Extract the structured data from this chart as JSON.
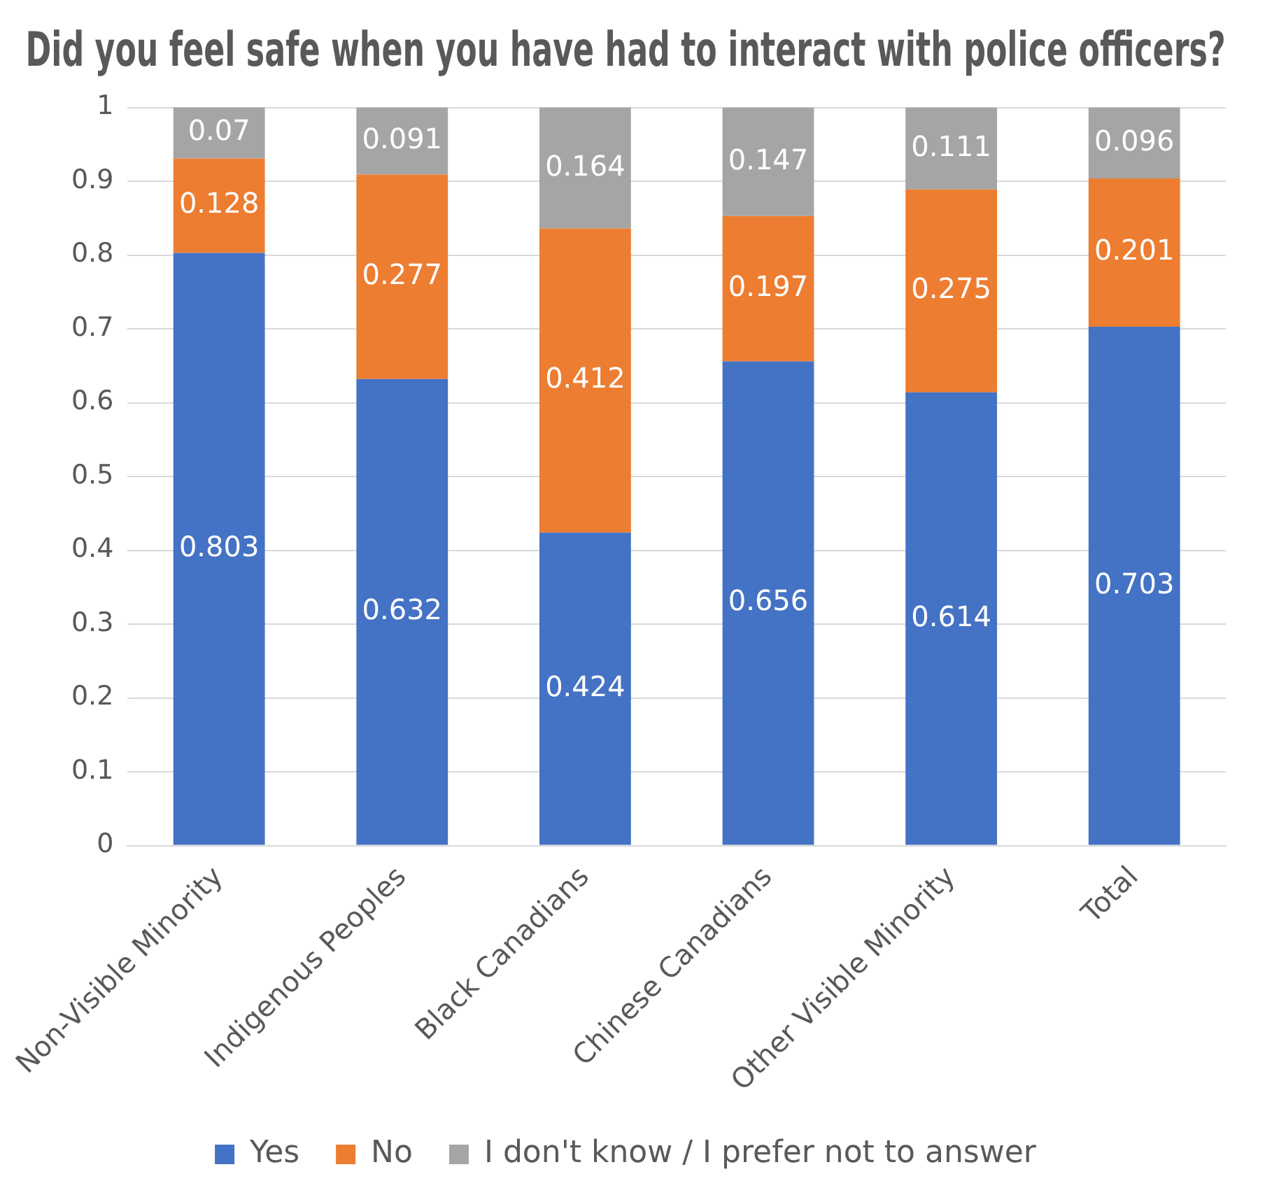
{
  "chart_data": {
    "type": "bar",
    "title": "Did you feel safe when you have had to interact with police officers?",
    "stacked": true,
    "categories": [
      "Non-Visible Minority",
      "Indigenous Peoples",
      "Black Canadians",
      "Chinese Canadians",
      "Other Visible Minority",
      "Total"
    ],
    "series": [
      {
        "name": "Yes",
        "color": "#4472c4",
        "values": [
          0.803,
          0.632,
          0.424,
          0.656,
          0.614,
          0.703
        ]
      },
      {
        "name": "No",
        "color": "#ed7d31",
        "values": [
          0.128,
          0.277,
          0.412,
          0.197,
          0.275,
          0.201
        ]
      },
      {
        "name": "I don't know / I prefer not to answer",
        "color": "#a5a5a5",
        "values": [
          0.07,
          0.091,
          0.164,
          0.147,
          0.111,
          0.096
        ]
      }
    ],
    "ylim": [
      0,
      1
    ],
    "yticks": [
      0,
      0.1,
      0.2,
      0.3,
      0.4,
      0.5,
      0.6,
      0.7,
      0.8,
      0.9,
      1
    ],
    "grid": "y",
    "legend": "bottom",
    "data_labels": true
  }
}
